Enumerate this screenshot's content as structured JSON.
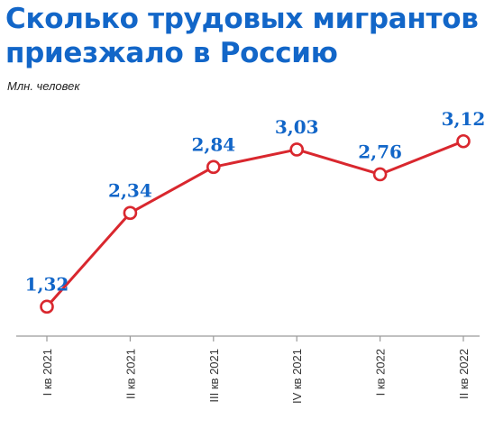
{
  "title": "Сколько трудовых мигрантов приезжало в Россию",
  "subtitle": "Млн. человек",
  "colors": {
    "title": "#1266c8",
    "label": "#1266c8",
    "line": "#d9272e",
    "axis": "#9a9a9a",
    "tick_text": "#333333"
  },
  "chart_data": {
    "type": "line",
    "title": "Сколько трудовых мигрантов приезжало в Россию",
    "ylabel": "Млн. человек",
    "xlabel": "",
    "categories": [
      "I кв 2021",
      "II кв 2021",
      "III кв 2021",
      "IV кв 2021",
      "I кв 2022",
      "II кв 2022"
    ],
    "values": [
      1.32,
      2.34,
      2.84,
      3.03,
      2.76,
      3.12
    ],
    "value_labels": [
      "1,32",
      "2,34",
      "2,84",
      "3,03",
      "2,76",
      "3,12"
    ],
    "ylim": [
      1.0,
      3.5
    ],
    "grid": false,
    "legend": "none"
  }
}
